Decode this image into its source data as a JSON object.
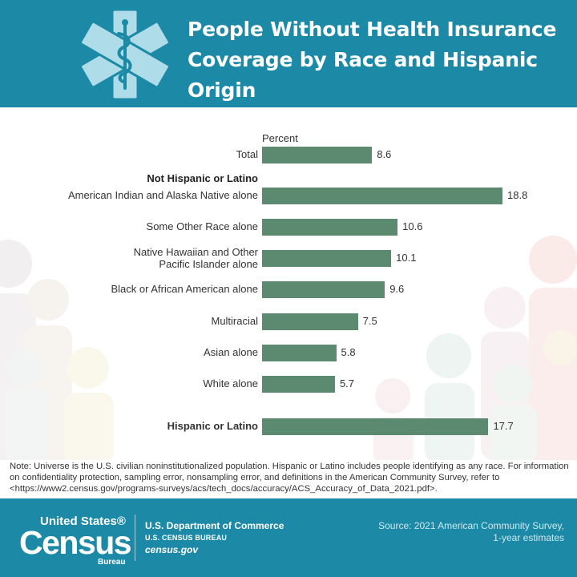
{
  "header": {
    "title": "People Without Health Insurance Coverage by Race and Hispanic Origin"
  },
  "chart_data": {
    "type": "bar",
    "orientation": "horizontal",
    "title": "People Without Health Insurance Coverage by Race and Hispanic Origin",
    "xlabel": "Percent",
    "ylabel": "",
    "xlim": [
      0,
      20
    ],
    "grid": false,
    "group_labels": {
      "not_hispanic": "Not Hispanic or Latino"
    },
    "categories": [
      "Total",
      "American Indian and Alaska Native alone",
      "Some Other Race alone",
      "Native Hawaiian and Other Pacific Islander alone",
      "Black or African American alone",
      "Multiracial",
      "Asian alone",
      "White alone",
      "Hispanic or Latino"
    ],
    "values": [
      8.6,
      18.8,
      10.6,
      10.1,
      9.6,
      7.5,
      5.8,
      5.7,
      17.7
    ],
    "value_labels": [
      "8.6",
      "18.8",
      "10.6",
      "10.1",
      "9.6",
      "7.5",
      "5.8",
      "5.7",
      "17.7"
    ],
    "bar_color": "#5c8a70"
  },
  "note": "Note: Universe is the U.S. civilian noninstitutionalized population. Hispanic or Latino includes people identifying as any race. For information on confidentiality protection, sampling error, nonsampling error, and definitions in the American Community Survey, refer to <https://www2.census.gov/programs-surveys/acs/tech_docs/accuracy/ACS_Accuracy_of_Data_2021.pdf>.",
  "footer": {
    "logo_us": "United States®",
    "logo_census": "Census",
    "logo_bureau": "Bureau",
    "department": "U.S. Department of Commerce",
    "bureau": "U.S. CENSUS BUREAU",
    "site": "census.gov",
    "source_line1": "Source: 2021 American Community Survey,",
    "source_line2": "1-year estimates"
  },
  "colors": {
    "header_bg": "#1c8aa6",
    "bar": "#5c8a70",
    "text": "#333333"
  },
  "icons": {
    "header": "medical-star-of-life-icon"
  }
}
